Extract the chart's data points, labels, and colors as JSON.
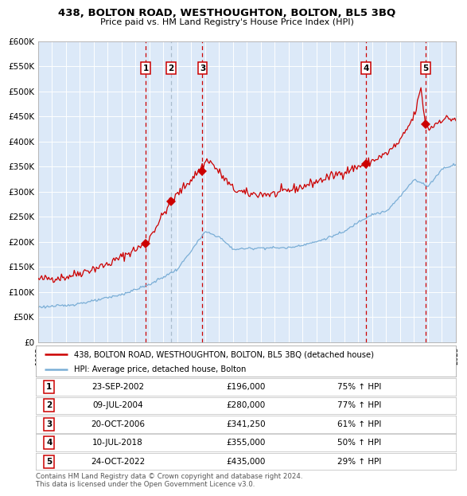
{
  "title1": "438, BOLTON ROAD, WESTHOUGHTON, BOLTON, BL5 3BQ",
  "title2": "Price paid vs. HM Land Registry's House Price Index (HPI)",
  "ylim": [
    0,
    600000
  ],
  "xlim": [
    1995,
    2025
  ],
  "yticks": [
    0,
    50000,
    100000,
    150000,
    200000,
    250000,
    300000,
    350000,
    400000,
    450000,
    500000,
    550000,
    600000
  ],
  "ytick_labels": [
    "£0",
    "£50K",
    "£100K",
    "£150K",
    "£200K",
    "£250K",
    "£300K",
    "£350K",
    "£400K",
    "£450K",
    "£500K",
    "£550K",
    "£600K"
  ],
  "xticks": [
    1995,
    1996,
    1997,
    1998,
    1999,
    2000,
    2001,
    2002,
    2003,
    2004,
    2005,
    2006,
    2007,
    2008,
    2009,
    2010,
    2011,
    2012,
    2013,
    2014,
    2015,
    2016,
    2017,
    2018,
    2019,
    2020,
    2021,
    2022,
    2023,
    2024,
    2025
  ],
  "bg_color": "#dce9f8",
  "grid_color": "#ffffff",
  "red_line_color": "#cc0000",
  "blue_line_color": "#7aaed6",
  "sale_marker_color": "#cc0000",
  "sale_vline_color": "#cc0000",
  "hpi_vline_color": "#aabbcc",
  "legend_label_red": "438, BOLTON ROAD, WESTHOUGHTON, BOLTON, BL5 3BQ (detached house)",
  "legend_label_blue": "HPI: Average price, detached house, Bolton",
  "sales": [
    {
      "num": 1,
      "year": 2002.73,
      "price": 196000,
      "vline_style": "red"
    },
    {
      "num": 2,
      "year": 2004.53,
      "price": 280000,
      "vline_style": "blue"
    },
    {
      "num": 3,
      "year": 2006.8,
      "price": 341250,
      "vline_style": "red"
    },
    {
      "num": 4,
      "year": 2018.53,
      "price": 355000,
      "vline_style": "red"
    },
    {
      "num": 5,
      "year": 2022.81,
      "price": 435000,
      "vline_style": "red"
    }
  ],
  "table_rows": [
    {
      "num": 1,
      "date": "23-SEP-2002",
      "price": "£196,000",
      "hpi": "75% ↑ HPI"
    },
    {
      "num": 2,
      "date": "09-JUL-2004",
      "price": "£280,000",
      "hpi": "77% ↑ HPI"
    },
    {
      "num": 3,
      "date": "20-OCT-2006",
      "price": "£341,250",
      "hpi": "61% ↑ HPI"
    },
    {
      "num": 4,
      "date": "10-JUL-2018",
      "price": "£355,000",
      "hpi": "50% ↑ HPI"
    },
    {
      "num": 5,
      "date": "24-OCT-2022",
      "price": "£435,000",
      "hpi": "29% ↑ HPI"
    }
  ],
  "footer": "Contains HM Land Registry data © Crown copyright and database right 2024.\nThis data is licensed under the Open Government Licence v3.0."
}
